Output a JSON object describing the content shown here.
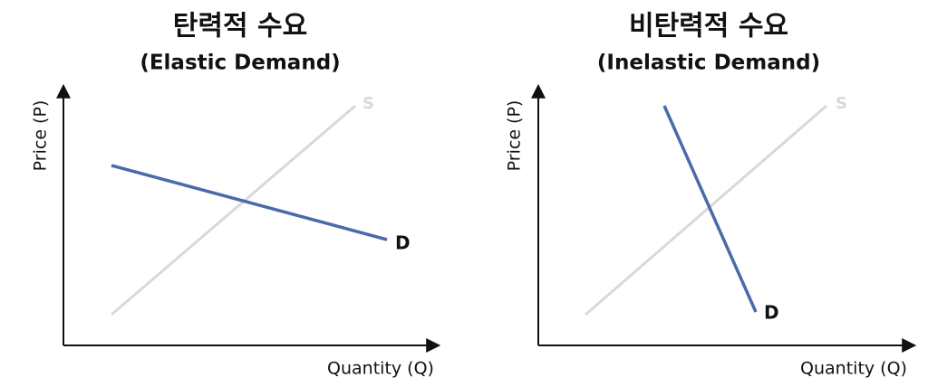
{
  "panels": [
    {
      "title": "탄력적 수요",
      "subtitle": "(Elastic Demand)",
      "y_label": "Price (P)",
      "x_label": "Quantity (Q)",
      "supply_label": "S",
      "demand_label": "D"
    },
    {
      "title": "비탄력적 수요",
      "subtitle": "(Inelastic Demand)",
      "y_label": "Price (P)",
      "x_label": "Quantity (Q)",
      "supply_label": "S",
      "demand_label": "D"
    }
  ]
}
